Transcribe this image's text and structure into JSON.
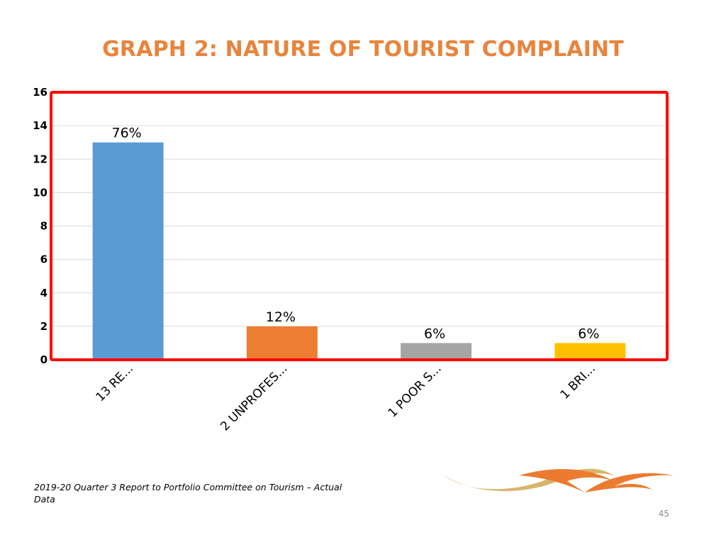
{
  "chart_data": {
    "type": "bar",
    "title": "GRAPH 2: NATURE OF TOURIST COMPLAINT",
    "categories": [
      "13 RE...",
      "2 UNPROFES...",
      "1 POOR S...",
      "1 BRI..."
    ],
    "values": [
      13,
      2,
      1,
      1
    ],
    "data_labels": [
      "76%",
      "12%",
      "6%",
      "6%"
    ],
    "bar_colors": [
      "#5b9bd5",
      "#ed7d31",
      "#a5a5a5",
      "#ffc000"
    ],
    "ylim": [
      0,
      16
    ],
    "yticks": [
      0,
      2,
      4,
      6,
      8,
      10,
      12,
      14,
      16
    ],
    "grid": true,
    "legend": "none",
    "frame_color": "#ff0000"
  },
  "footer": {
    "source": "2019-20 Quarter 3 Report to Portfolio Committee on Tourism  – Actual Data",
    "page_number": "45"
  },
  "colors": {
    "title": "#e8843c",
    "logo_orange": "#ec7a2f",
    "logo_gold": "#d9b46a"
  }
}
